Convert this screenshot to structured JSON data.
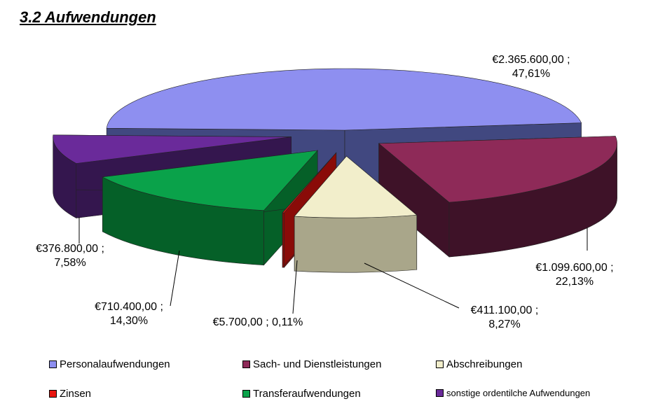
{
  "page": {
    "title": "3.2  Aufwendungen"
  },
  "chart_data": {
    "type": "pie",
    "style": "3d-exploded",
    "currency": "EUR",
    "slices": [
      {
        "name": "Personalaufwendungen",
        "value": 2365600.0,
        "percent": 47.61,
        "value_label": "€2.365.600,00 ;",
        "percent_label": "47,61%",
        "color": "#8e8ff0",
        "side_color": "#414880"
      },
      {
        "name": "Sach- und Dienstleistungen",
        "value": 1099600.0,
        "percent": 22.13,
        "value_label": "€1.099.600,00 ;",
        "percent_label": "22,13%",
        "color": "#8e2a58",
        "side_color": "#3e1228"
      },
      {
        "name": "Abschreibungen",
        "value": 411100.0,
        "percent": 8.27,
        "value_label": "€411.100,00 ;",
        "percent_label": "8,27%",
        "color": "#f2eecb",
        "side_color": "#a9a68a"
      },
      {
        "name": "Zinsen",
        "value": 5700.0,
        "percent": 0.11,
        "value_label": "€5.700,00 ; 0,11%",
        "percent_label": "",
        "color": "#e8150f",
        "side_color": "#8a0b08"
      },
      {
        "name": "Transferaufwendungen",
        "value": 710400.0,
        "percent": 14.3,
        "value_label": "€710.400,00 ;",
        "percent_label": "14,30%",
        "color": "#0aa24a",
        "side_color": "#056028"
      },
      {
        "name": "sonstige ordentilche Aufwendungen",
        "value": 376800.0,
        "percent": 7.58,
        "value_label": "€376.800,00 ;",
        "percent_label": "7,58%",
        "color": "#6a2a9a",
        "side_color": "#34164e"
      }
    ],
    "legend": {
      "placement": "bottom",
      "items": [
        {
          "label": "Personalaufwendungen",
          "color": "#8e8ff0"
        },
        {
          "label": "Sach- und Dienstleistungen",
          "color": "#8e2a58"
        },
        {
          "label": "Abschreibungen",
          "color": "#f2eecb"
        },
        {
          "label": "Zinsen",
          "color": "#e8150f"
        },
        {
          "label": "Transferaufwendungen",
          "color": "#0aa24a"
        },
        {
          "label": "sonstige ordentilche Aufwendungen",
          "color": "#6a2a9a"
        }
      ]
    }
  }
}
